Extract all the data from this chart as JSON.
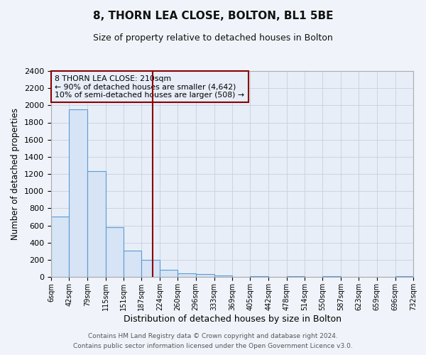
{
  "title": "8, THORN LEA CLOSE, BOLTON, BL1 5BE",
  "subtitle": "Size of property relative to detached houses in Bolton",
  "xlabel": "Distribution of detached houses by size in Bolton",
  "ylabel": "Number of detached properties",
  "bin_edges": [
    6,
    42,
    79,
    115,
    151,
    187,
    224,
    260,
    296,
    333,
    369,
    405,
    442,
    478,
    514,
    550,
    587,
    623,
    659,
    696,
    732
  ],
  "bin_labels": [
    "6sqm",
    "42sqm",
    "79sqm",
    "115sqm",
    "151sqm",
    "187sqm",
    "224sqm",
    "260sqm",
    "296sqm",
    "333sqm",
    "369sqm",
    "405sqm",
    "442sqm",
    "478sqm",
    "514sqm",
    "550sqm",
    "587sqm",
    "623sqm",
    "659sqm",
    "696sqm",
    "732sqm"
  ],
  "counts": [
    700,
    1950,
    1230,
    580,
    305,
    200,
    85,
    45,
    30,
    15,
    0,
    10,
    0,
    5,
    0,
    5,
    0,
    0,
    0,
    5
  ],
  "bar_facecolor": "#d6e4f5",
  "bar_edgecolor": "#5b9bd5",
  "vline_x": 210,
  "vline_color": "#8b0000",
  "ylim": [
    0,
    2400
  ],
  "yticks": [
    0,
    200,
    400,
    600,
    800,
    1000,
    1200,
    1400,
    1600,
    1800,
    2000,
    2200,
    2400
  ],
  "annotation_title": "8 THORN LEA CLOSE: 210sqm",
  "annotation_line1": "← 90% of detached houses are smaller (4,642)",
  "annotation_line2": "10% of semi-detached houses are larger (508) →",
  "annotation_box_edgecolor": "#8b0000",
  "grid_color": "#c8d0dc",
  "plot_bg_color": "#e8eef8",
  "background_color": "#f0f4fa",
  "footer1": "Contains HM Land Registry data © Crown copyright and database right 2024.",
  "footer2": "Contains public sector information licensed under the Open Government Licence v3.0."
}
